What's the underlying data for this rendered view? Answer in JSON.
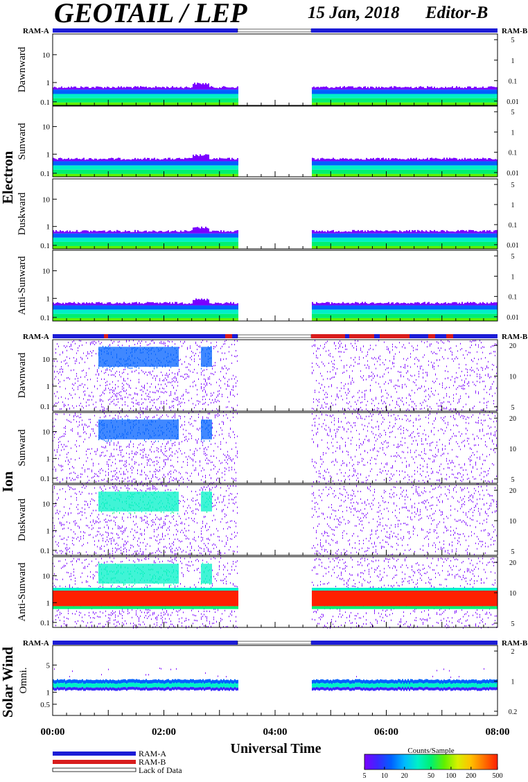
{
  "header": {
    "title": "GEOTAIL / LEP",
    "date": "15 Jan, 2018",
    "editor": "Editor-B"
  },
  "colors": {
    "ram_a": "#1c1cd6",
    "ram_b": "#d81c1c",
    "lack": "#ffffff",
    "colorscale": [
      "#7a00ff",
      "#3a28ff",
      "#0060ff",
      "#00b8ff",
      "#00f0c8",
      "#00f070",
      "#60f000",
      "#d8f000",
      "#ffc000",
      "#ff7000",
      "#ff2000"
    ]
  },
  "groups": {
    "electron": "Electron",
    "ion": "Ion",
    "solar_wind": "Solar Wind"
  },
  "ram": {
    "left_label": "RAM-A",
    "right_label": "RAM-B"
  },
  "x_axis": {
    "label": "Universal Time",
    "ticks": [
      "00:00",
      "02:00",
      "04:00",
      "06:00",
      "08:00"
    ],
    "range_hours": [
      0,
      8
    ]
  },
  "legend": {
    "ram_a": "RAM-A",
    "ram_b": "RAM-B",
    "lack": "Lack of Data",
    "colorbar_title": "Counts/Sample",
    "colorbar_ticks": [
      "5",
      "10",
      "20",
      "50",
      "100",
      "200",
      "500"
    ]
  },
  "chart_data": {
    "type": "heatmap",
    "x_unit": "hours UT",
    "data_gap_hours": [
      3.32,
      4.65
    ],
    "colorbar": {
      "label": "Counts/Sample",
      "range": [
        5,
        500
      ],
      "scale": "log"
    },
    "panels": [
      {
        "group": "Electron",
        "label": "Dawnward",
        "left_ticks": [
          "10",
          "1",
          "0.1"
        ],
        "right_ticks": [
          "5",
          "1",
          "0.1",
          "0.01"
        ],
        "ram_a_segments": [
          [
            0,
            3.32
          ],
          [
            4.65,
            8
          ]
        ],
        "ram_b_segments": [],
        "dominant_band_left": [
          0.1,
          0.5
        ]
      },
      {
        "group": "Electron",
        "label": "Sunward",
        "left_ticks": [
          "10",
          "1",
          "0.1"
        ],
        "right_ticks": [
          "5",
          "1",
          "0.1",
          "0.01"
        ],
        "dominant_band_left": [
          0.1,
          0.5
        ]
      },
      {
        "group": "Electron",
        "label": "Duskward",
        "left_ticks": [
          "10",
          "1",
          "0.1"
        ],
        "right_ticks": [
          "5",
          "1",
          "0.1",
          "0.01"
        ],
        "dominant_band_left": [
          0.1,
          0.5
        ]
      },
      {
        "group": "Electron",
        "label": "Anti-Sunward",
        "left_ticks": [
          "10",
          "1",
          "0.1"
        ],
        "right_ticks": [
          "5",
          "1",
          "0.1",
          "0.01"
        ],
        "dominant_band_left": [
          0.1,
          0.5
        ]
      },
      {
        "group": "Ion",
        "label": "Dawnward",
        "left_ticks": [
          "10",
          "1",
          "0.1"
        ],
        "right_ticks": [
          "20",
          "10",
          "5"
        ],
        "ram_a_segments": [
          [
            0,
            3.32
          ],
          [
            4.65,
            8
          ]
        ],
        "ram_b_segments": [
          [
            4.65,
            6.6
          ]
        ],
        "enhancement_hours": [
          [
            0.8,
            2.25
          ],
          [
            2.65,
            2.85
          ]
        ]
      },
      {
        "group": "Ion",
        "label": "Sunward",
        "left_ticks": [
          "10",
          "1",
          "0.1"
        ],
        "right_ticks": [
          "20",
          "10",
          "5"
        ],
        "enhancement_hours": [
          [
            0.8,
            2.25
          ],
          [
            2.65,
            2.85
          ]
        ]
      },
      {
        "group": "Ion",
        "label": "Duskward",
        "left_ticks": [
          "10",
          "1",
          "0.1"
        ],
        "right_ticks": [
          "20",
          "10",
          "5"
        ],
        "enhancement_hours": [
          [
            0.8,
            2.25
          ],
          [
            2.65,
            2.85
          ]
        ]
      },
      {
        "group": "Ion",
        "label": "Anti-Sunward",
        "left_ticks": [
          "10",
          "1",
          "0.1"
        ],
        "right_ticks": [
          "20",
          "10",
          "5"
        ],
        "solar_wind_band_left": [
          0.7,
          3.0
        ]
      },
      {
        "group": "Solar Wind",
        "label": "Omni.",
        "left_ticks": [
          "5",
          "1",
          "0.5"
        ],
        "right_ticks": [
          "2",
          "1",
          "0.2"
        ],
        "ram_a_segments": [
          [
            0,
            3.32
          ],
          [
            4.65,
            8
          ]
        ],
        "ram_b_segments": [],
        "dominant_band_left": [
          0.9,
          1.9
        ]
      }
    ]
  }
}
